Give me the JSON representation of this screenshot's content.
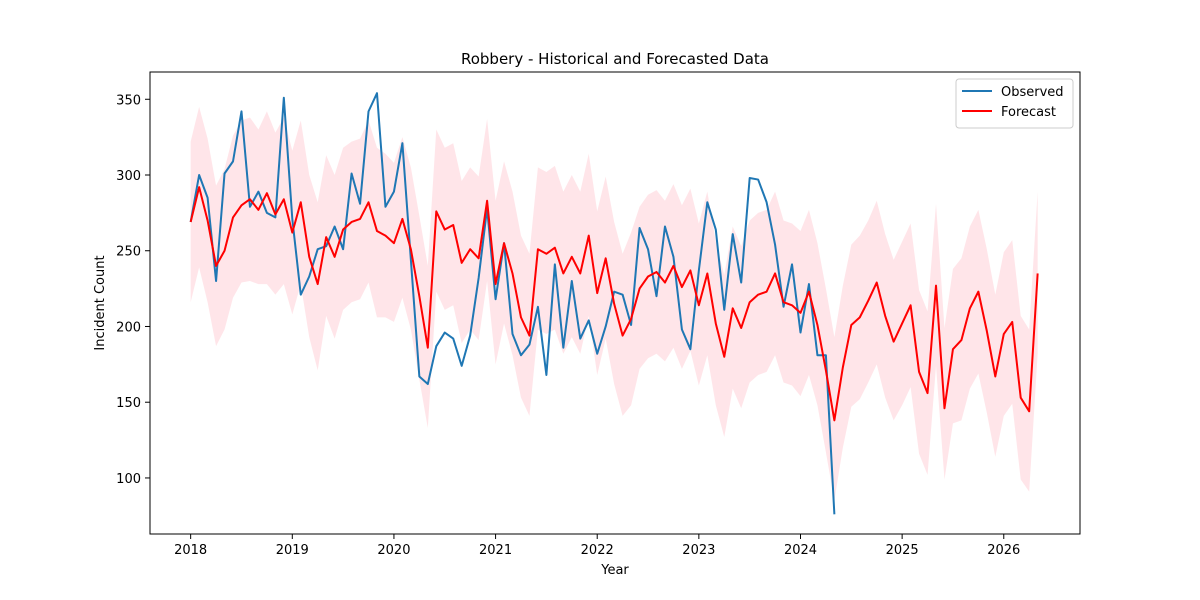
{
  "chart_data": {
    "type": "line",
    "title": "Robbery - Historical and Forecasted Data",
    "xlabel": "Year",
    "ylabel": "Incident Count",
    "xlim": [
      2017.6,
      2026.75
    ],
    "ylim": [
      63,
      368
    ],
    "xticks": [
      2018,
      2019,
      2020,
      2021,
      2022,
      2023,
      2024,
      2025,
      2026
    ],
    "yticks": [
      100,
      150,
      200,
      250,
      300,
      350
    ],
    "grid": false,
    "legend_position": "top-right",
    "legend": [
      "Observed",
      "Forecast"
    ],
    "colors": {
      "observed": "#1f77b4",
      "forecast": "#ff0000",
      "band": "#ffc0cb"
    },
    "series": [
      {
        "name": "Observed",
        "x_start": 2018.0,
        "x_step_months": 1,
        "values": [
          269,
          300,
          285,
          230,
          301,
          309,
          342,
          279,
          289,
          275,
          272,
          351,
          271,
          221,
          233,
          251,
          253,
          266,
          251,
          301,
          281,
          342,
          354,
          279,
          289,
          321,
          244,
          167,
          162,
          187,
          196,
          192,
          174,
          194,
          232,
          278,
          218,
          255,
          195,
          181,
          188,
          213,
          168,
          241,
          186,
          230,
          192,
          204,
          182,
          200,
          223,
          221,
          201,
          265,
          251,
          220,
          266,
          246,
          198,
          185,
          237,
          282,
          264,
          211,
          261,
          229,
          298,
          297,
          282,
          254,
          213,
          241,
          196,
          228,
          181,
          181,
          76
        ]
      },
      {
        "name": "Forecast",
        "x_start": 2018.0,
        "x_step_months": 1,
        "values": [
          269,
          292,
          270,
          240,
          250,
          272,
          280,
          284,
          277,
          288,
          274,
          284,
          262,
          282,
          246,
          228,
          259,
          246,
          264,
          269,
          271,
          282,
          263,
          260,
          255,
          271,
          251,
          220,
          186,
          276,
          264,
          267,
          242,
          251,
          245,
          283,
          228,
          255,
          235,
          206,
          194,
          251,
          248,
          252,
          235,
          246,
          235,
          260,
          222,
          245,
          215,
          194,
          205,
          225,
          233,
          236,
          229,
          240,
          226,
          237,
          214,
          235,
          202,
          180,
          212,
          199,
          216,
          221,
          223,
          235,
          216,
          214,
          209,
          223,
          201,
          171,
          138,
          173,
          201,
          206,
          217,
          229,
          207,
          190,
          202,
          214,
          170,
          156,
          227,
          146,
          185,
          191,
          212,
          223,
          197,
          167,
          195,
          203,
          153,
          144,
          235
        ],
        "lower": [
          216,
          239,
          216,
          187,
          198,
          219,
          229,
          230,
          228,
          228,
          221,
          228,
          208,
          228,
          193,
          171,
          207,
          192,
          211,
          216,
          218,
          229,
          206,
          206,
          203,
          219,
          198,
          165,
          133,
          223,
          211,
          214,
          189,
          198,
          191,
          230,
          175,
          202,
          181,
          153,
          141,
          198,
          195,
          198,
          182,
          193,
          182,
          207,
          168,
          192,
          162,
          141,
          148,
          172,
          179,
          182,
          177,
          186,
          172,
          184,
          161,
          181,
          148,
          127,
          159,
          146,
          163,
          168,
          170,
          181,
          163,
          161,
          154,
          168,
          148,
          117,
          85,
          120,
          147,
          152,
          163,
          175,
          153,
          138,
          148,
          160,
          116,
          102,
          174,
          99,
          136,
          138,
          159,
          169,
          143,
          114,
          141,
          149,
          99,
          91,
          182
        ],
        "upper": [
          322,
          345,
          324,
          293,
          304,
          326,
          336,
          338,
          330,
          342,
          328,
          338,
          316,
          336,
          300,
          282,
          313,
          300,
          318,
          322,
          324,
          336,
          318,
          314,
          308,
          325,
          305,
          273,
          240,
          330,
          318,
          321,
          296,
          305,
          299,
          337,
          283,
          309,
          289,
          260,
          248,
          305,
          302,
          306,
          289,
          300,
          289,
          314,
          276,
          299,
          269,
          248,
          262,
          279,
          287,
          290,
          283,
          294,
          280,
          291,
          268,
          289,
          256,
          234,
          266,
          253,
          270,
          275,
          277,
          289,
          270,
          268,
          263,
          277,
          255,
          225,
          193,
          227,
          254,
          260,
          270,
          283,
          261,
          244,
          256,
          268,
          224,
          210,
          281,
          199,
          238,
          245,
          266,
          277,
          251,
          221,
          249,
          257,
          207,
          198,
          289
        ]
      }
    ]
  }
}
